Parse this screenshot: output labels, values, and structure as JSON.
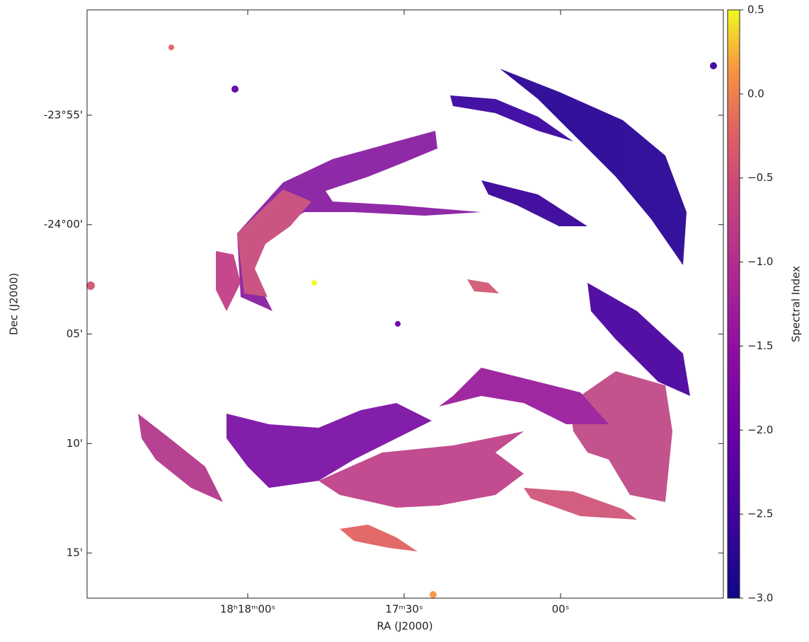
{
  "chart_data": {
    "type": "image",
    "xlabel": "RA (J2000)",
    "ylabel": "Dec (J2000)",
    "xlim": [
      274.6284,
      274.1199
    ],
    "xticks": [
      {
        "value": 274.5,
        "label": "18ʰ18ᵐ00ˢ"
      },
      {
        "value": 274.375,
        "label": "17ᵐ30ˢ"
      },
      {
        "value": 274.25,
        "label": "00ˢ"
      }
    ],
    "ylim": [
      -24.2844,
      -23.8365
    ],
    "yticks": [
      {
        "value": -23.9167,
        "label": "-23°55'"
      },
      {
        "value": -24.0,
        "label": "-24°00'"
      },
      {
        "value": -24.0833,
        "label": "05'"
      },
      {
        "value": -24.1667,
        "label": "10'"
      },
      {
        "value": -24.25,
        "label": "15'"
      }
    ],
    "colorbar": {
      "label": "Spectral Index",
      "colormap": "plasma",
      "clim": [
        -3.0,
        0.5
      ],
      "ticks": [
        0.5,
        {
          "value": 0.0,
          "label": "0.0"
        },
        {
          "value": -0.5,
          "label": "−0.5"
        },
        {
          "value": -1.0,
          "label": "−1.0"
        },
        {
          "value": -1.5,
          "label": "−1.5"
        },
        {
          "value": -2.0,
          "label": "−2.0"
        },
        {
          "value": -2.5,
          "label": "−2.5"
        },
        {
          "value": -3.0,
          "label": "−3.0"
        }
      ]
    }
  }
}
